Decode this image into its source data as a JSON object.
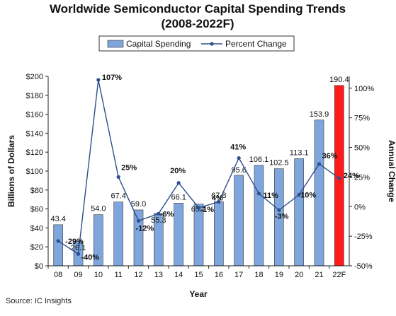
{
  "chart_data": {
    "type": "bar",
    "title_line1": "Worldwide Semiconductor Capital Spending Trends",
    "title_line2": "(2008-2022F)",
    "categories": [
      "08",
      "09",
      "10",
      "11",
      "12",
      "13",
      "14",
      "15",
      "16",
      "17",
      "18",
      "19",
      "20",
      "21",
      "22F"
    ],
    "series": [
      {
        "name": "Capital Spending",
        "type": "bar",
        "axis": "left",
        "values": [
          43.4,
          26.1,
          54.0,
          67.4,
          59.0,
          55.3,
          66.1,
          65.2,
          67.8,
          95.6,
          106.1,
          102.5,
          113.1,
          153.9,
          190.4
        ],
        "labels": [
          "43.4",
          "26.1",
          "54.0",
          "67.4",
          "59.0",
          "55.3",
          "66.1",
          "65.2",
          "67.8",
          "95.6",
          "106.1",
          "102.5",
          "113.1",
          "153.9",
          "190.4"
        ],
        "color": "#7ea6dc",
        "highlight_color": "#ff1a1a"
      },
      {
        "name": "Percent Change",
        "type": "line",
        "axis": "right",
        "values": [
          -29,
          -40,
          107,
          25,
          -12,
          -6,
          20,
          -1,
          4,
          41,
          11,
          -3,
          10,
          36,
          24
        ],
        "labels": [
          "-29%",
          "-40%",
          "107%",
          "25%",
          "-12%",
          "-6%",
          "20%",
          "-1%",
          "4%",
          "41%",
          "11%",
          "-3%",
          "10%",
          "36%",
          "24%"
        ],
        "color": "#2e4f8c"
      }
    ],
    "xlabel": "Year",
    "ylabel": "Billions of Dollars",
    "y2label": "Annual Change",
    "ylim": [
      0,
      200
    ],
    "y2lim": [
      -50,
      110
    ],
    "yticks": [
      "$0",
      "$20",
      "$40",
      "$60",
      "$80",
      "$100",
      "$120",
      "$140",
      "$160",
      "$180",
      "$200"
    ],
    "y2ticks": [
      "-50%",
      "-25%",
      "0%",
      "25%",
      "50%",
      "75%",
      "100%"
    ],
    "grid": false,
    "legend": "top-center"
  },
  "source": "Source: IC Insights"
}
